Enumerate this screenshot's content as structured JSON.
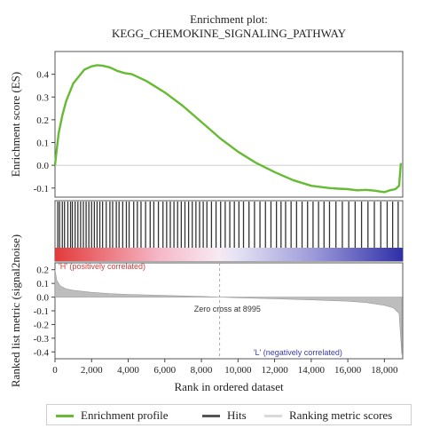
{
  "chart_data": {
    "type": "line",
    "title_line1": "Enrichment plot:",
    "title_line2": "KEGG_CHEMOKINE_SIGNALING_PATHWAY",
    "xlabel": "Rank in ordered dataset",
    "xlim": [
      0,
      19000
    ],
    "x_ticks": [
      0,
      2000,
      4000,
      6000,
      8000,
      10000,
      12000,
      14000,
      16000,
      18000
    ],
    "x_tick_labels": [
      "0",
      "2,000",
      "4,000",
      "6,000",
      "8,000",
      "10,000",
      "12,000",
      "14,000",
      "16,000",
      "18,000"
    ],
    "enrichment": {
      "ylabel": "Enrichment score (ES)",
      "ylim": [
        -0.14,
        0.5
      ],
      "y_ticks": [
        -0.1,
        0.0,
        0.1,
        0.2,
        0.3,
        0.4
      ],
      "y_tick_labels": [
        "-0.1",
        "0.0",
        "0.1",
        "0.2",
        "0.3",
        "0.4"
      ],
      "series": [
        {
          "name": "Enrichment profile",
          "color": "#66bb33",
          "x": [
            0,
            80,
            200,
            400,
            600,
            800,
            1000,
            1300,
            1600,
            2000,
            2300,
            2600,
            3000,
            3400,
            3800,
            4200,
            5000,
            6000,
            7000,
            8000,
            9000,
            10000,
            11000,
            12000,
            13000,
            14000,
            15000,
            15500,
            16000,
            16500,
            17000,
            17500,
            18000,
            18300,
            18600,
            18800,
            18900
          ],
          "y": [
            0.0,
            0.06,
            0.14,
            0.22,
            0.28,
            0.32,
            0.36,
            0.39,
            0.42,
            0.435,
            0.44,
            0.438,
            0.43,
            0.415,
            0.405,
            0.4,
            0.37,
            0.32,
            0.26,
            0.19,
            0.12,
            0.06,
            0.01,
            -0.03,
            -0.065,
            -0.09,
            -0.1,
            -0.103,
            -0.105,
            -0.11,
            -0.108,
            -0.112,
            -0.118,
            -0.11,
            -0.105,
            -0.09,
            0.01
          ]
        }
      ]
    },
    "hits": {
      "name": "Hits",
      "color": "#333333",
      "positions": [
        150,
        250,
        400,
        520,
        700,
        850,
        950,
        1100,
        1250,
        1400,
        1550,
        1700,
        1850,
        2000,
        2150,
        2300,
        2450,
        2600,
        2800,
        3000,
        3150,
        3350,
        3500,
        3700,
        3900,
        4050,
        4300,
        4500,
        4700,
        4950,
        5200,
        5400,
        5650,
        5900,
        6100,
        6300,
        6500,
        6700,
        6900,
        7100,
        7300,
        7500,
        7700,
        7900,
        8100,
        8300,
        8550,
        8800,
        9050,
        9300,
        9550,
        9800,
        10050,
        10300,
        10600,
        10900,
        11200,
        11500,
        11800,
        12100,
        12350,
        12600,
        12900,
        13200,
        13500,
        13800,
        14100,
        14400,
        14700,
        15000,
        15350,
        15700,
        16050,
        16400,
        16750,
        17100,
        17450,
        17800,
        18150,
        18450,
        18750
      ]
    },
    "ranked_metric": {
      "ylabel": "Ranked list metric (signal2noise)",
      "ylim": [
        -0.45,
        0.25
      ],
      "y_ticks": [
        -0.4,
        -0.3,
        -0.2,
        -0.1,
        0.0,
        0.1,
        0.2
      ],
      "y_tick_labels": [
        "-0.4",
        "-0.3",
        "-0.2",
        "-0.1",
        "0.0",
        "0.1",
        "0.2"
      ],
      "series": [
        {
          "name": "Ranking metric scores",
          "color": "#bdbdbd",
          "x": [
            0,
            100,
            300,
            600,
            1000,
            2000,
            3000,
            4000,
            6000,
            8000,
            8995,
            10000,
            12000,
            14000,
            16000,
            17000,
            18000,
            18500,
            18800,
            18950
          ],
          "y": [
            0.2,
            0.12,
            0.08,
            0.06,
            0.05,
            0.035,
            0.025,
            0.02,
            0.012,
            0.005,
            0.0,
            -0.005,
            -0.012,
            -0.02,
            -0.03,
            -0.04,
            -0.06,
            -0.08,
            -0.12,
            -0.42
          ]
        }
      ],
      "zero_cross_label": "Zero cross at 8995",
      "zero_cross_x": 8995,
      "positive_label": "'H' (positively correlated)",
      "negative_label": "'L' (negatively correlated)"
    },
    "legend": [
      {
        "label": "Enrichment profile",
        "color": "#66bb33"
      },
      {
        "label": "Hits",
        "color": "#555555"
      },
      {
        "label": "Ranking metric scores",
        "color": "#d9d9d9"
      }
    ],
    "legend_position": "bottom",
    "grid": false
  }
}
